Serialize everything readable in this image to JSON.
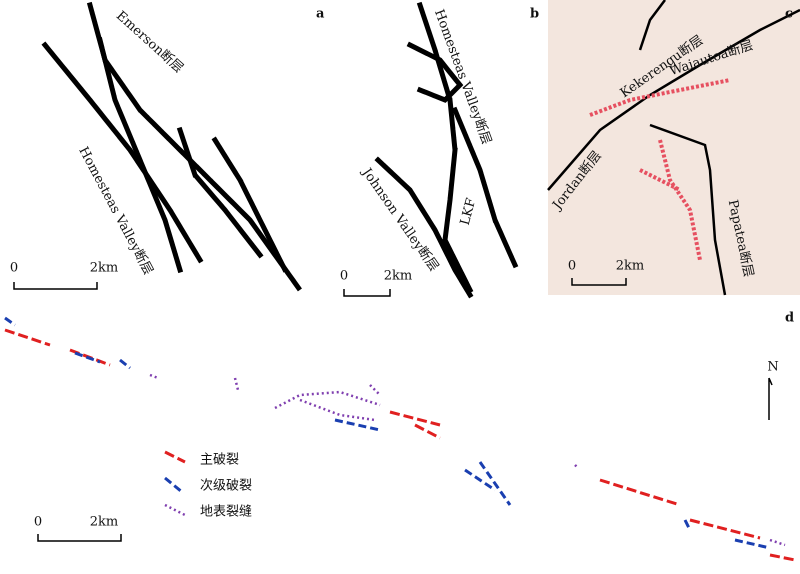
{
  "panels": [
    {
      "label": "a",
      "faults": [
        "Emerson断层",
        "Homesteas Valley断层"
      ],
      "scale": [
        "0",
        "2km"
      ]
    },
    {
      "label": "b",
      "faults": [
        "Homesteas Valley断层",
        "Johnson Valley断层",
        "LKF"
      ],
      "scale": [
        "0",
        "2km"
      ]
    },
    {
      "label": "c",
      "faults": [
        "Kekerengu断层",
        "Waiautoa断层",
        "Jordan断层",
        "Papatea断层"
      ],
      "scale": [
        "0",
        "2km"
      ]
    },
    {
      "label": "d",
      "north": "N",
      "legend": [
        "主破裂",
        "次级破裂",
        "地表裂缝"
      ],
      "scale": [
        "0",
        "2km"
      ]
    }
  ]
}
